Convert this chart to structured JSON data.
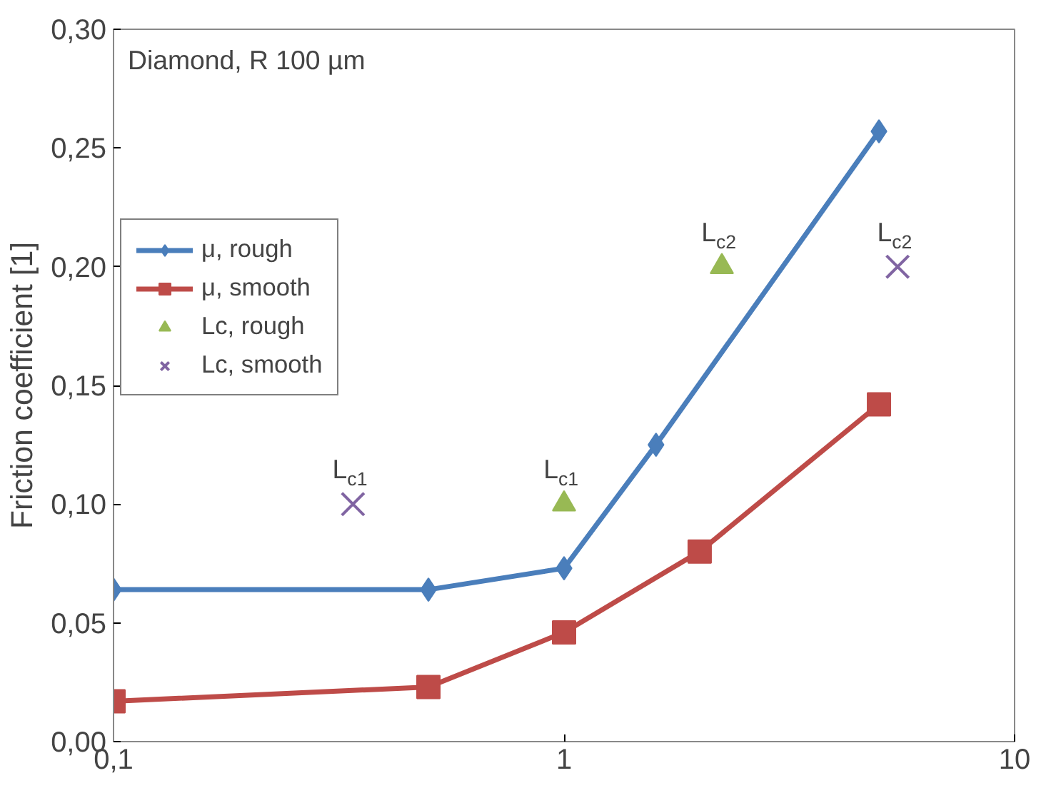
{
  "chart_data": {
    "type": "line",
    "ylabel": "Friction coefficient [1]",
    "log": "x",
    "xlim": [
      0.1,
      10
    ],
    "xticks": [
      {
        "value": 0.1,
        "label": "0,1"
      },
      1,
      10
    ],
    "ylim": [
      0,
      0.3
    ],
    "yticks": [
      {
        "value": 0,
        "label": "0,00"
      },
      {
        "value": 0.05,
        "label": "0,05"
      },
      {
        "value": 0.1,
        "label": "0,10"
      },
      {
        "value": 0.15,
        "label": "0,15"
      },
      {
        "value": 0.2,
        "label": "0,20"
      },
      {
        "value": 0.25,
        "label": "0,25"
      },
      {
        "value": 0.3,
        "label": "0,30"
      }
    ],
    "grid": false,
    "legend": "top left",
    "series": [
      {
        "name": "μ, rough",
        "marker": "diamond",
        "color": "#4a7ebb",
        "x": [
          0.1,
          0.5,
          1,
          1.6,
          5
        ],
        "values": [
          0.064,
          0.064,
          0.073,
          0.125,
          0.257
        ]
      },
      {
        "name": "μ, smooth",
        "marker": "square",
        "color": "#be4b48",
        "x": [
          0.1,
          0.5,
          1,
          2,
          5
        ],
        "values": [
          0.017,
          0.023,
          0.046,
          0.08,
          0.142
        ]
      },
      {
        "name": "Lc, rough",
        "type": "scatter",
        "marker": "triangle",
        "color": "#98b954",
        "x": [
          1,
          2.24
        ],
        "values": [
          0.1,
          0.2
        ]
      },
      {
        "name": "Lc, smooth",
        "type": "scatter",
        "marker": "cross",
        "color": "#8064a2",
        "x": [
          0.34,
          5.5
        ],
        "values": [
          0.1,
          0.2
        ]
      }
    ],
    "annotations": [
      "Diamond, R 100 µm",
      {
        "text": "L$_{c1}$",
        "x": 0.34,
        "y": 0.1
      },
      {
        "text": "L$_{c1}$",
        "x": 1,
        "y": 0.1
      },
      {
        "text": "L$_{c2}$",
        "x": 2.24,
        "y": 0.2
      },
      {
        "text": "L$_{c2}$",
        "x": 5.5,
        "y": 0.2
      }
    ]
  }
}
